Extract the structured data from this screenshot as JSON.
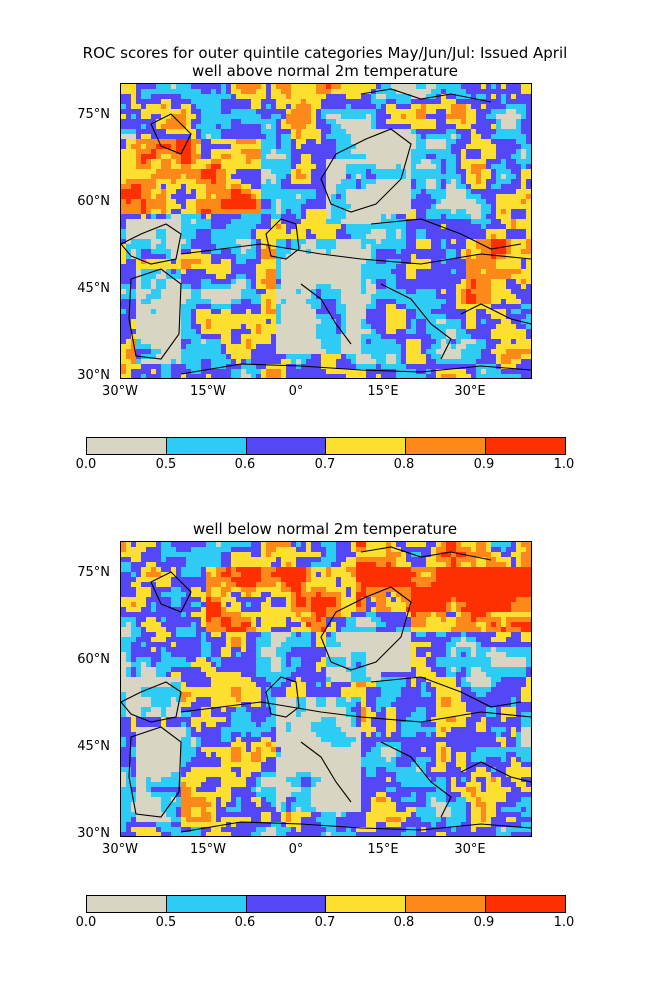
{
  "figure": {
    "title_line1": "ROC scores for outer quintile categories May/Jun/Jul: Issued April"
  },
  "maps": [
    {
      "subtitle": "well above normal 2m temperature",
      "variant": "above"
    },
    {
      "subtitle": "well below normal 2m temperature",
      "variant": "below"
    }
  ],
  "axes": {
    "lat_labels": [
      "75°N",
      "60°N",
      "45°N",
      "30°N"
    ],
    "lon_labels": [
      "30°W",
      "15°W",
      "0°",
      "15°E",
      "30°E"
    ],
    "lat_range": [
      30,
      80
    ],
    "lon_range": [
      -30,
      40
    ]
  },
  "colorbar": {
    "ticks": [
      "0.0",
      "0.5",
      "0.6",
      "0.7",
      "0.8",
      "0.9",
      "1.0"
    ],
    "colors": [
      "#d8d6c2",
      "#2ecbf5",
      "#5447f7",
      "#fde02f",
      "#fd891b",
      "#fe3001"
    ]
  }
}
